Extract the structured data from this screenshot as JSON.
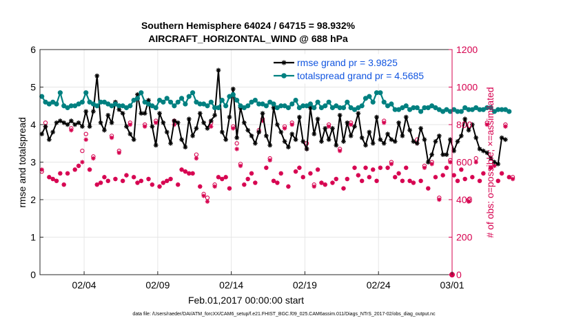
{
  "chart_data": {
    "type": "line",
    "title_line1": "Southern Hemisphere 64024 / 64715 = 98.932%",
    "title_line2": "AIRCRAFT_HORIZONTAL_WIND @ 688 hPa",
    "xlabel": "Feb.01,2017 00:00:00 start",
    "ylabel_left": "rmse and totalspread",
    "ylabel_right": "# of obs: o=possible; ×=assimilated",
    "footer": "data file: /Users/raeder/DAI/ATM_forcXX/CAM6_setup/f.e21.FHIST_BGC.f09_025.CAM6assim.011/Diags_NTrS_2017-02/obs_diag_output.nc",
    "x_range_days": [
      0.0,
      28.0
    ],
    "x_ticks": [
      {
        "day": 3,
        "label": "02/04"
      },
      {
        "day": 8,
        "label": "02/09"
      },
      {
        "day": 13,
        "label": "02/14"
      },
      {
        "day": 18,
        "label": "02/19"
      },
      {
        "day": 23,
        "label": "02/24"
      },
      {
        "day": 28,
        "label": "03/01"
      }
    ],
    "ylim_left": [
      0,
      6
    ],
    "yticks_left": [
      0,
      1,
      2,
      3,
      4,
      5,
      6
    ],
    "ylim_right": [
      0,
      1200
    ],
    "yticks_right": [
      0,
      200,
      400,
      600,
      800,
      1000,
      1200
    ],
    "grid": true,
    "legend_position": "top-right",
    "time_step_days": 0.25,
    "series": [
      {
        "name": "rmse grand pr = 3.9825",
        "color": "#000000",
        "marker": "asterisk",
        "values": [
          3.75,
          3.95,
          3.6,
          3.8,
          4.05,
          4.1,
          4.05,
          4.0,
          4.1,
          4.0,
          4.05,
          3.95,
          4.35,
          3.95,
          4.35,
          5.3,
          4.05,
          3.85,
          4.25,
          4.05,
          4.6,
          4.4,
          4.3,
          3.95,
          3.75,
          3.6,
          4.8,
          4.3,
          4.3,
          4.65,
          3.95,
          3.45,
          4.3,
          4.05,
          3.8,
          3.5,
          4.1,
          4.05,
          3.6,
          3.4,
          4.15,
          3.7,
          3.9,
          4.3,
          4.05,
          3.9,
          4.1,
          4.25,
          5.45,
          3.8,
          3.6,
          4.2,
          4.95,
          3.65,
          4.45,
          4.05,
          3.85,
          3.7,
          3.5,
          3.8,
          4.3,
          3.7,
          3.45,
          4.45,
          4.0,
          3.8,
          3.55,
          3.4,
          3.75,
          3.6,
          4.2,
          3.55,
          3.35,
          4.45,
          3.75,
          4.15,
          3.55,
          3.9,
          3.6,
          3.9,
          3.45,
          4.25,
          3.55,
          4.05,
          3.7,
          3.95,
          4.3,
          3.65,
          3.45,
          3.8,
          3.5,
          4.2,
          3.6,
          3.5,
          3.75,
          3.6,
          3.55,
          4.05,
          3.7,
          4.2,
          3.85,
          3.55,
          3.5,
          3.9,
          3.6,
          3.0,
          3.2,
          3.55,
          3.7,
          3.2,
          3.2,
          3.6,
          3.3,
          3.55,
          3.7,
          4.15,
          3.85,
          4.0,
          3.65,
          3.35,
          3.3,
          3.25,
          3.1,
          3.0,
          2.95,
          3.65,
          3.6
        ]
      },
      {
        "name": "totalspread grand pr = 4.5685",
        "color": "#008080",
        "marker": "circle",
        "values": [
          4.75,
          4.6,
          4.55,
          4.6,
          4.55,
          4.85,
          4.5,
          4.45,
          4.5,
          4.5,
          4.55,
          4.6,
          4.85,
          4.6,
          4.55,
          4.5,
          4.6,
          4.6,
          4.55,
          4.5,
          4.55,
          4.5,
          4.5,
          4.45,
          4.5,
          4.65,
          4.7,
          4.85,
          4.6,
          4.55,
          4.5,
          4.45,
          4.65,
          4.6,
          4.7,
          4.6,
          4.5,
          4.6,
          4.7,
          4.55,
          4.75,
          4.85,
          4.6,
          4.55,
          4.55,
          4.5,
          4.6,
          4.45,
          4.45,
          4.65,
          4.5,
          4.75,
          4.8,
          4.65,
          4.5,
          4.45,
          4.5,
          4.6,
          4.65,
          4.55,
          4.55,
          4.5,
          4.6,
          4.55,
          4.45,
          4.5,
          4.5,
          4.45,
          4.55,
          4.65,
          4.45,
          4.5,
          4.5,
          4.55,
          4.45,
          4.6,
          4.45,
          4.5,
          4.6,
          4.45,
          4.5,
          4.45,
          4.45,
          4.6,
          4.45,
          4.4,
          4.45,
          4.5,
          4.7,
          4.75,
          4.6,
          4.85,
          4.85,
          4.6,
          4.5,
          4.55,
          4.4,
          4.4,
          4.45,
          4.5,
          4.4,
          4.45,
          4.45,
          4.35,
          4.45,
          4.45,
          4.5,
          4.45,
          4.4,
          4.35,
          4.4,
          4.35,
          4.4,
          4.35,
          4.35,
          4.45,
          4.4,
          4.4,
          4.45,
          4.4,
          4.4,
          4.45,
          4.45,
          4.35,
          4.4,
          4.4,
          4.4,
          4.35
        ]
      }
    ],
    "obs_possible": {
      "name": "o=possible",
      "color": "#d6004e",
      "axis": "right",
      "values": [
        550,
        810,
        520,
        510,
        500,
        540,
        480,
        540,
        780,
        560,
        580,
        660,
        750,
        560,
        630,
        480,
        490,
        520,
        500,
        740,
        510,
        660,
        500,
        530,
        810,
        520,
        490,
        500,
        800,
        510,
        480,
        820,
        470,
        490,
        500,
        510,
        820,
        480,
        560,
        550,
        540,
        540,
        640,
        470,
        430,
        410,
        810,
        480,
        520,
        510,
        520,
        460,
        790,
        700,
        590,
        480,
        510,
        540,
        490,
        770,
        830,
        570,
        620,
        500,
        490,
        540,
        790,
        470,
        810,
        550,
        570,
        520,
        700,
        540,
        480,
        560,
        490,
        480,
        800,
        490,
        510,
        670,
        460,
        510,
        810,
        570,
        530,
        500,
        570,
        520,
        560,
        500,
        570,
        820,
        570,
        600,
        520,
        540,
        500,
        570,
        500,
        490,
        720,
        500,
        580,
        460,
        600,
        520,
        410,
        530,
        570,
        610,
        530,
        500,
        560,
        510,
        400,
        520,
        620,
        500,
        540,
        810,
        570,
        590,
        500,
        540,
        800,
        520,
        520
      ]
    },
    "obs_assimilated": {
      "name": "×=assimilated",
      "color": "#d6004e",
      "axis": "right",
      "values": [
        560,
        790,
        520,
        510,
        500,
        540,
        480,
        540,
        770,
        560,
        580,
        600,
        720,
        560,
        620,
        480,
        490,
        520,
        500,
        730,
        510,
        650,
        500,
        530,
        800,
        520,
        490,
        500,
        790,
        510,
        480,
        810,
        470,
        490,
        500,
        510,
        800,
        480,
        560,
        550,
        540,
        540,
        620,
        470,
        420,
        390,
        790,
        470,
        520,
        510,
        520,
        460,
        780,
        670,
        580,
        480,
        510,
        540,
        490,
        760,
        820,
        570,
        610,
        500,
        490,
        540,
        780,
        470,
        800,
        550,
        570,
        520,
        670,
        540,
        470,
        560,
        490,
        480,
        790,
        490,
        510,
        660,
        460,
        510,
        800,
        570,
        530,
        500,
        570,
        520,
        560,
        500,
        570,
        810,
        570,
        590,
        520,
        540,
        500,
        570,
        500,
        490,
        700,
        500,
        570,
        460,
        590,
        520,
        400,
        530,
        570,
        600,
        530,
        500,
        560,
        510,
        390,
        520,
        600,
        500,
        540,
        800,
        570,
        580,
        500,
        540,
        790,
        520,
        510
      ]
    },
    "final_obs": {
      "day": 28,
      "value": 0
    }
  }
}
